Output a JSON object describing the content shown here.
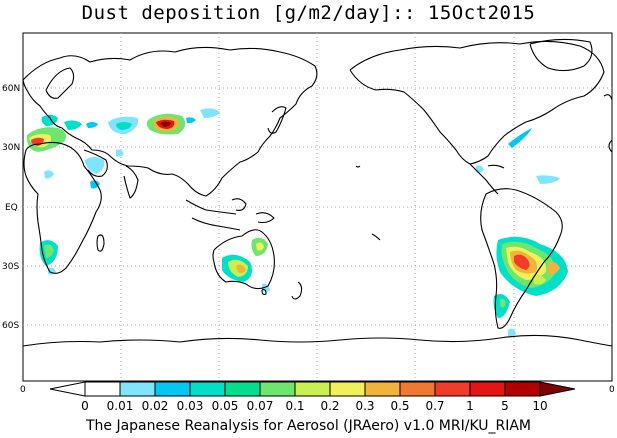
{
  "title": "Dust deposition [g/m2/day]:: 15Oct2015",
  "footer": "The Japanese Reanalysis for Aerosol (JRAero) v1.0 MRI/KU_RIAM",
  "lat_labels": [
    "60N",
    "30N",
    "EQ",
    "30S",
    "60S"
  ],
  "lon_labels": [
    "0",
    "0"
  ],
  "colorbar": {
    "labels": [
      "0",
      "0.01",
      "0.02",
      "0.03",
      "0.05",
      "0.07",
      "0.1",
      "0.2",
      "0.3",
      "0.5",
      "0.7",
      "1",
      "5",
      "10"
    ],
    "colors": [
      "#ffffff",
      "#ffffff",
      "#7fe5ff",
      "#00c8f0",
      "#00e0c8",
      "#00e08c",
      "#6ee66e",
      "#c8f050",
      "#f0f05a",
      "#f0b43c",
      "#f07832",
      "#f03c28",
      "#e61414",
      "#b40000",
      "#820000"
    ]
  },
  "dust_regions": [
    {
      "name": "north-africa-west",
      "level": "0.7"
    },
    {
      "name": "arabia",
      "level": "0.05"
    },
    {
      "name": "central-asia",
      "level": "0.02"
    },
    {
      "name": "taklamakan",
      "level": "1"
    },
    {
      "name": "mongolia",
      "level": "0.05"
    },
    {
      "name": "south-africa",
      "level": "0.1"
    },
    {
      "name": "australia-central",
      "level": "0.1"
    },
    {
      "name": "australia-south",
      "level": "0.3"
    },
    {
      "name": "south-america-pampas",
      "level": "0.7"
    },
    {
      "name": "patagonia",
      "level": "0.05"
    }
  ]
}
